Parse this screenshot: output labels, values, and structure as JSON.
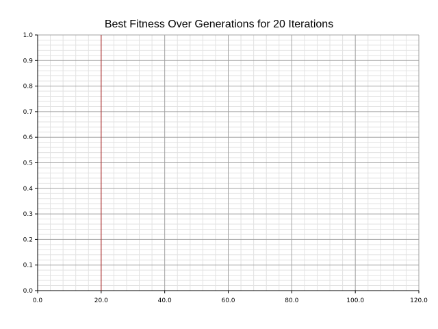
{
  "chart_data": {
    "type": "line",
    "title": "Best Fitness Over Generations for 20 Iterations",
    "xlabel": "",
    "ylabel": "",
    "xlim": [
      0,
      120
    ],
    "ylim": [
      0,
      1
    ],
    "x_ticks": [
      "0.0",
      "20.0",
      "40.0",
      "60.0",
      "80.0",
      "100.0",
      "120.0"
    ],
    "y_ticks": [
      "0.0",
      "0.1",
      "0.2",
      "0.3",
      "0.4",
      "0.5",
      "0.6",
      "0.7",
      "0.8",
      "0.9",
      "1.0"
    ],
    "grid": true,
    "minor_grid": true,
    "vertical_marker": {
      "x": 20,
      "color": "#b22222"
    },
    "series": []
  }
}
